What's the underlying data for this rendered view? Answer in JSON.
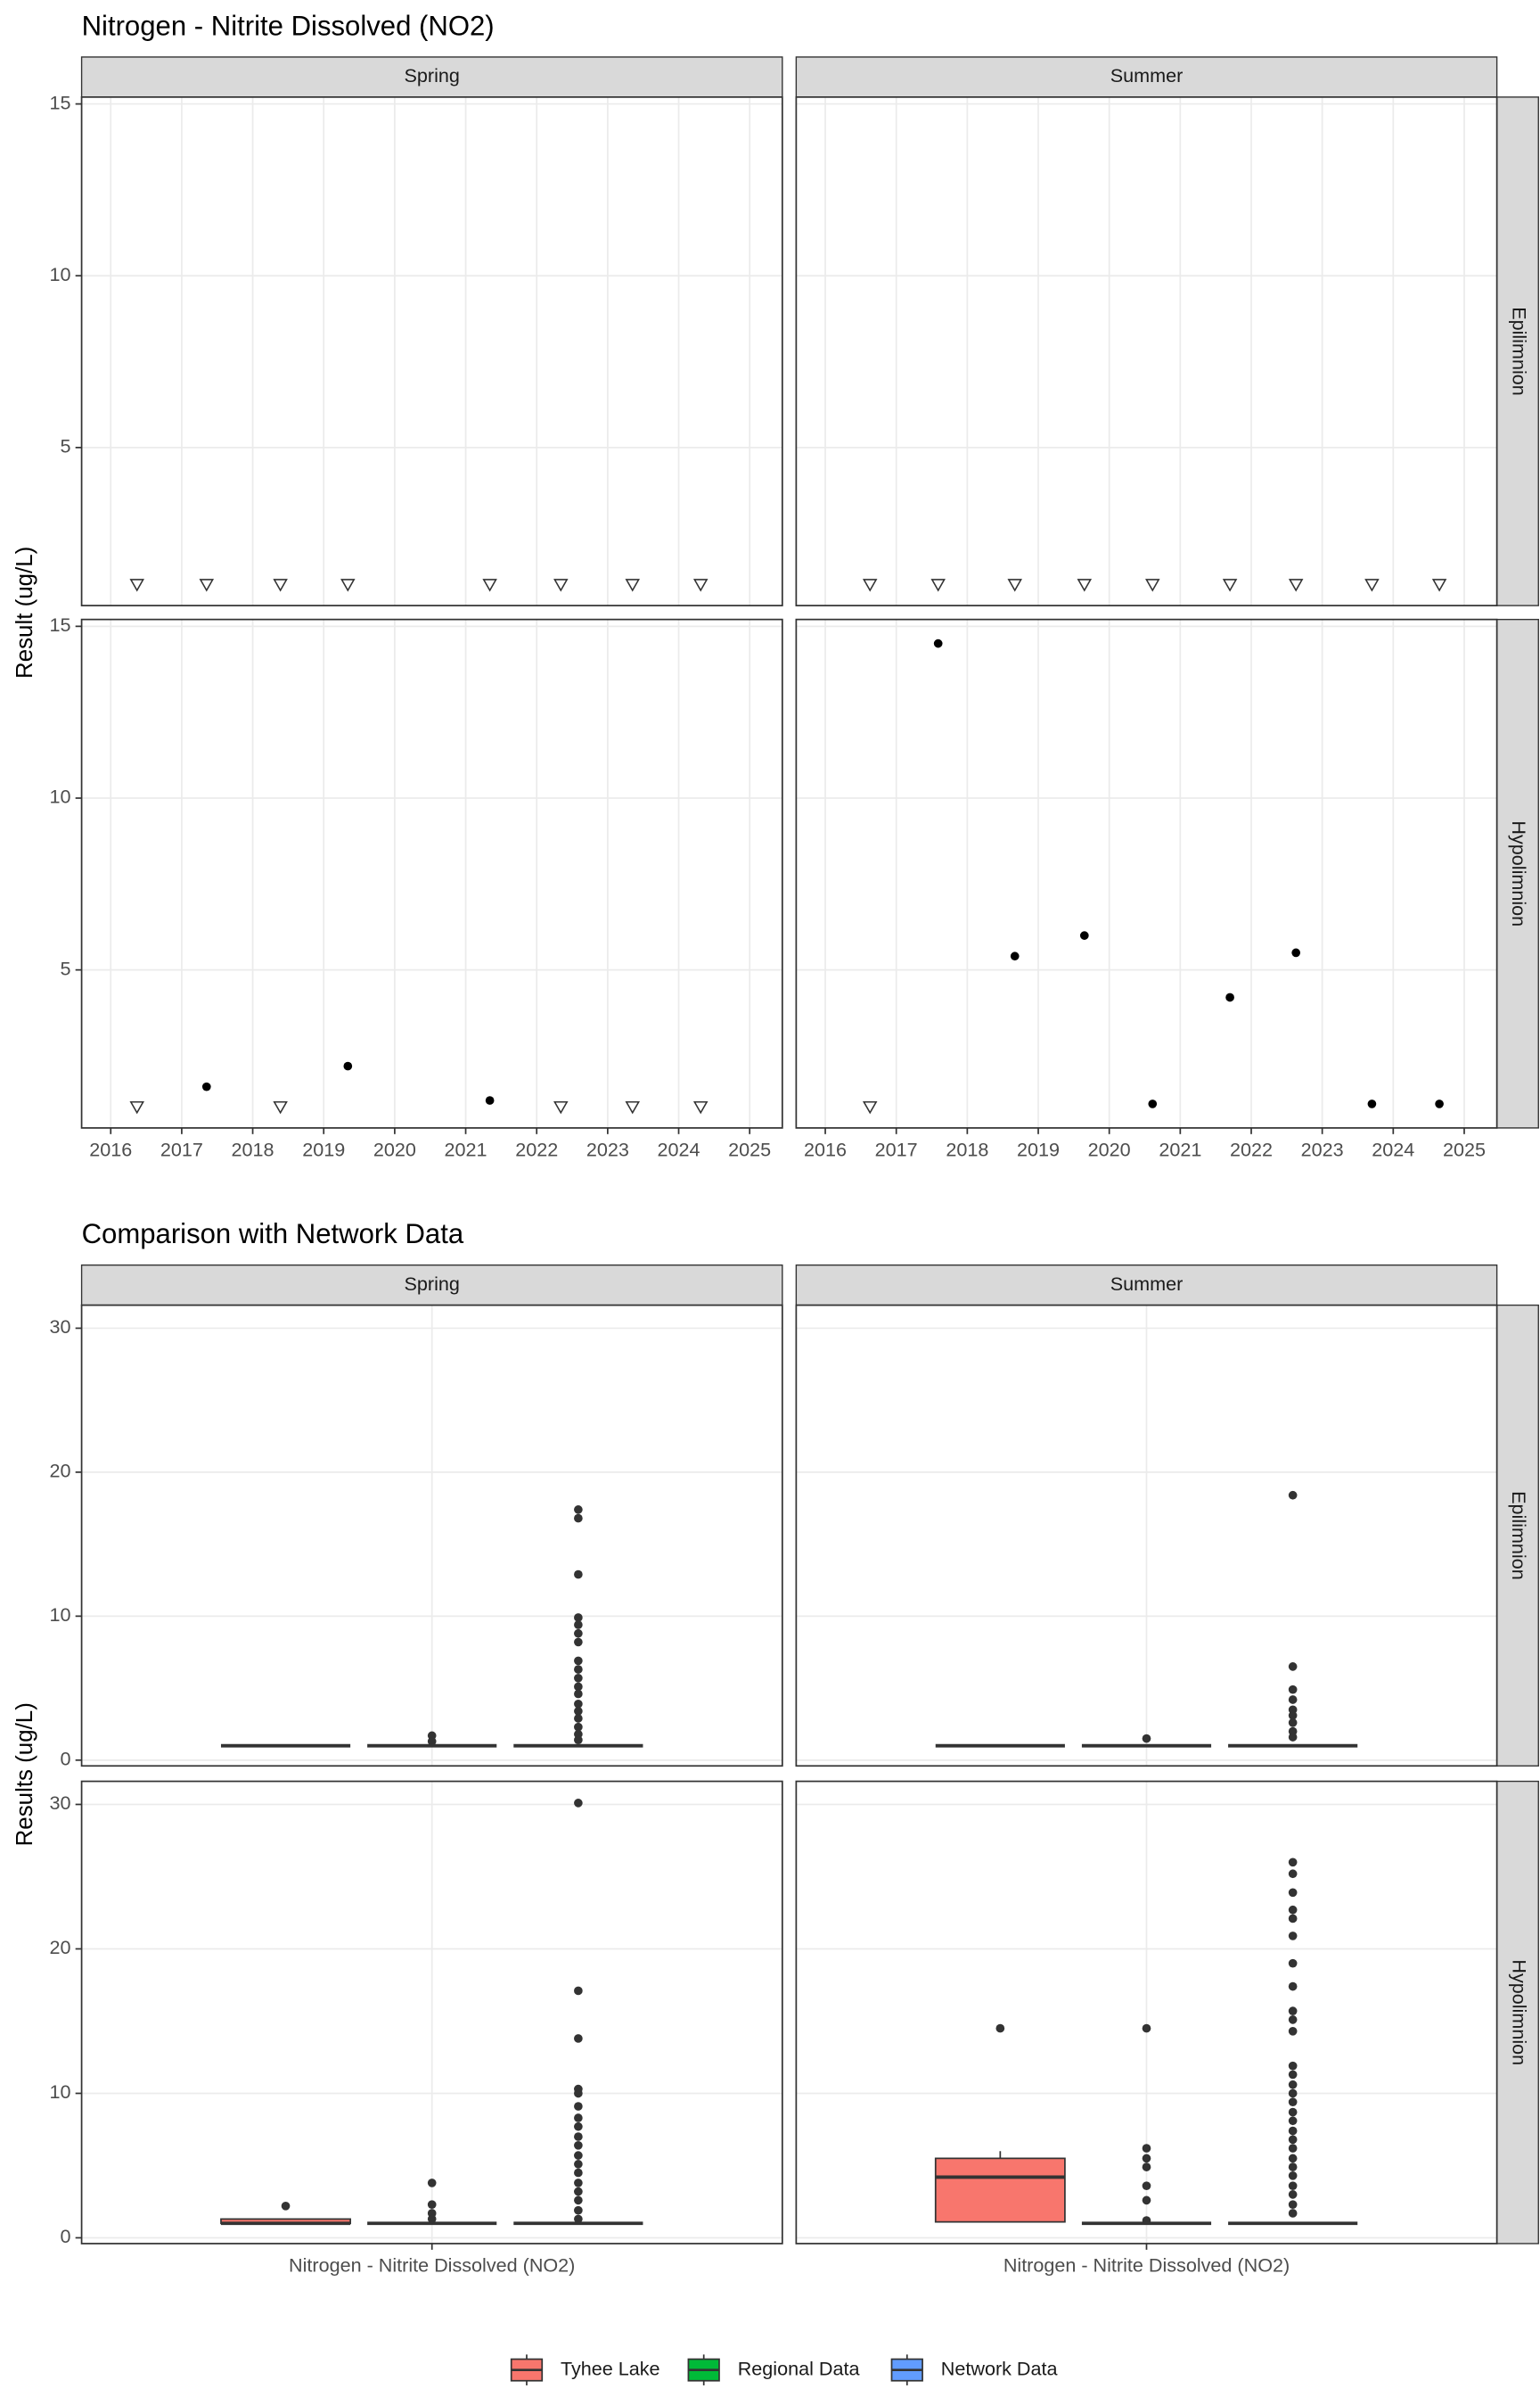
{
  "chart_data": [
    {
      "type": "scatter",
      "title": "Nitrogen - Nitrite Dissolved (NO2)",
      "y_label": "Result (ug/L)",
      "columns": [
        "Spring",
        "Summer"
      ],
      "rows": [
        "Epilimnion",
        "Hypolimnion"
      ],
      "xlim": [
        2015.59,
        2025.46
      ],
      "xticks": [
        2016,
        2017,
        2018,
        2019,
        2020,
        2021,
        2022,
        2023,
        2024,
        2025
      ],
      "ylim": [
        0.4,
        15.2
      ],
      "yticks": [
        5,
        10,
        15
      ],
      "grid": true,
      "panels": [
        [
          {
            "x": [
              2016.37,
              2017.35,
              2018.39,
              2019.34,
              2021.34,
              2022.34,
              2023.35,
              2024.31
            ],
            "values": [
              1,
              1,
              1,
              1,
              1,
              1,
              1,
              1
            ],
            "detected": [
              false,
              false,
              false,
              false,
              false,
              false,
              false,
              false
            ]
          },
          {
            "x": [
              2016.63,
              2017.59,
              2018.67,
              2019.65,
              2020.61,
              2021.7,
              2022.63,
              2023.7,
              2024.65
            ],
            "values": [
              1,
              1,
              1,
              1,
              1,
              1,
              1,
              1,
              1
            ],
            "detected": [
              false,
              false,
              false,
              false,
              false,
              false,
              false,
              false,
              false
            ]
          }
        ],
        [
          {
            "x": [
              2016.37,
              2017.35,
              2018.39,
              2019.34,
              2021.34,
              2022.34,
              2023.35,
              2024.31
            ],
            "values": [
              1,
              1.6,
              1,
              2.2,
              1.2,
              1,
              1,
              1
            ],
            "detected": [
              false,
              true,
              false,
              true,
              true,
              false,
              false,
              false
            ]
          },
          {
            "x": [
              2016.63,
              2017.59,
              2018.67,
              2019.65,
              2020.61,
              2021.7,
              2022.63,
              2023.7,
              2024.65
            ],
            "values": [
              1,
              14.5,
              5.4,
              6.0,
              1.1,
              4.2,
              5.5,
              1.1,
              1.1
            ],
            "detected": [
              false,
              true,
              true,
              true,
              true,
              true,
              true,
              true,
              true
            ]
          }
        ]
      ]
    },
    {
      "type": "box",
      "title": "Comparison with Network Data",
      "y_label": "Results (ug/L)",
      "columns": [
        "Spring",
        "Summer"
      ],
      "rows": [
        "Epilimnion",
        "Hypolimnion"
      ],
      "categories": [
        "Nitrogen - Nitrite Dissolved (NO2)"
      ],
      "ylim": [
        -0.4,
        31.6
      ],
      "yticks": [
        0,
        10,
        20,
        30
      ],
      "grid": true,
      "series": [
        {
          "name": "Tyhee Lake",
          "color": "#F8766D"
        },
        {
          "name": "Regional Data",
          "color": "#00BA38"
        },
        {
          "name": "Network Data",
          "color": "#619CFF"
        }
      ],
      "panels": [
        [
          [
            {
              "min": 1,
              "q1": 1,
              "median": 1,
              "q3": 1,
              "max": 1,
              "outliers": []
            },
            {
              "min": 1,
              "q1": 1,
              "median": 1,
              "q3": 1,
              "max": 1,
              "outliers": [
                1.7,
                1.3
              ]
            },
            {
              "min": 1,
              "q1": 1,
              "median": 1,
              "q3": 1,
              "max": 1,
              "outliers": [
                17.4,
                16.8,
                12.9,
                9.9,
                9.4,
                8.8,
                8.2,
                6.9,
                6.3,
                5.7,
                5.1,
                4.6,
                3.9,
                3.4,
                2.9,
                2.3,
                1.8,
                1.4
              ]
            }
          ],
          [
            {
              "min": 1,
              "q1": 1,
              "median": 1,
              "q3": 1,
              "max": 1,
              "outliers": []
            },
            {
              "min": 1,
              "q1": 1,
              "median": 1,
              "q3": 1,
              "max": 1,
              "outliers": [
                1.5
              ]
            },
            {
              "min": 1,
              "q1": 1,
              "median": 1,
              "q3": 1,
              "max": 1,
              "outliers": [
                18.4,
                6.5,
                4.9,
                4.2,
                3.5,
                3.1,
                2.6,
                2.0,
                1.6
              ]
            }
          ]
        ],
        [
          [
            {
              "min": 1,
              "q1": 1,
              "median": 1,
              "q3": 1.3,
              "max": 1.3,
              "outliers": [
                2.2
              ]
            },
            {
              "min": 1,
              "q1": 1,
              "median": 1,
              "q3": 1,
              "max": 1,
              "outliers": [
                3.8,
                2.3,
                1.7,
                1.3
              ]
            },
            {
              "min": 1,
              "q1": 1,
              "median": 1,
              "q3": 1,
              "max": 1,
              "outliers": [
                30.1,
                17.1,
                13.8,
                10.3,
                10.0,
                9.1,
                8.3,
                7.7,
                7.0,
                6.4,
                5.7,
                5.1,
                4.5,
                3.8,
                3.2,
                2.6,
                1.9,
                1.3
              ]
            }
          ],
          [
            {
              "min": 1.1,
              "q1": 1.1,
              "median": 4.2,
              "q3": 5.5,
              "max": 6.0,
              "outliers": [
                14.5
              ]
            },
            {
              "min": 1,
              "q1": 1,
              "median": 1,
              "q3": 1,
              "max": 1,
              "outliers": [
                14.5,
                6.2,
                5.5,
                4.9,
                3.6,
                2.6,
                1.2
              ]
            },
            {
              "min": 1,
              "q1": 1,
              "median": 1,
              "q3": 1,
              "max": 1,
              "outliers": [
                26.0,
                25.2,
                23.9,
                22.7,
                22.1,
                20.9,
                19.0,
                17.4,
                15.7,
                15.1,
                14.3,
                11.9,
                11.3,
                10.6,
                10.0,
                9.4,
                8.7,
                8.1,
                7.4,
                6.8,
                6.2,
                5.5,
                4.9,
                4.3,
                3.6,
                3.0,
                2.3,
                1.7
              ]
            }
          ]
        ]
      ]
    }
  ]
}
